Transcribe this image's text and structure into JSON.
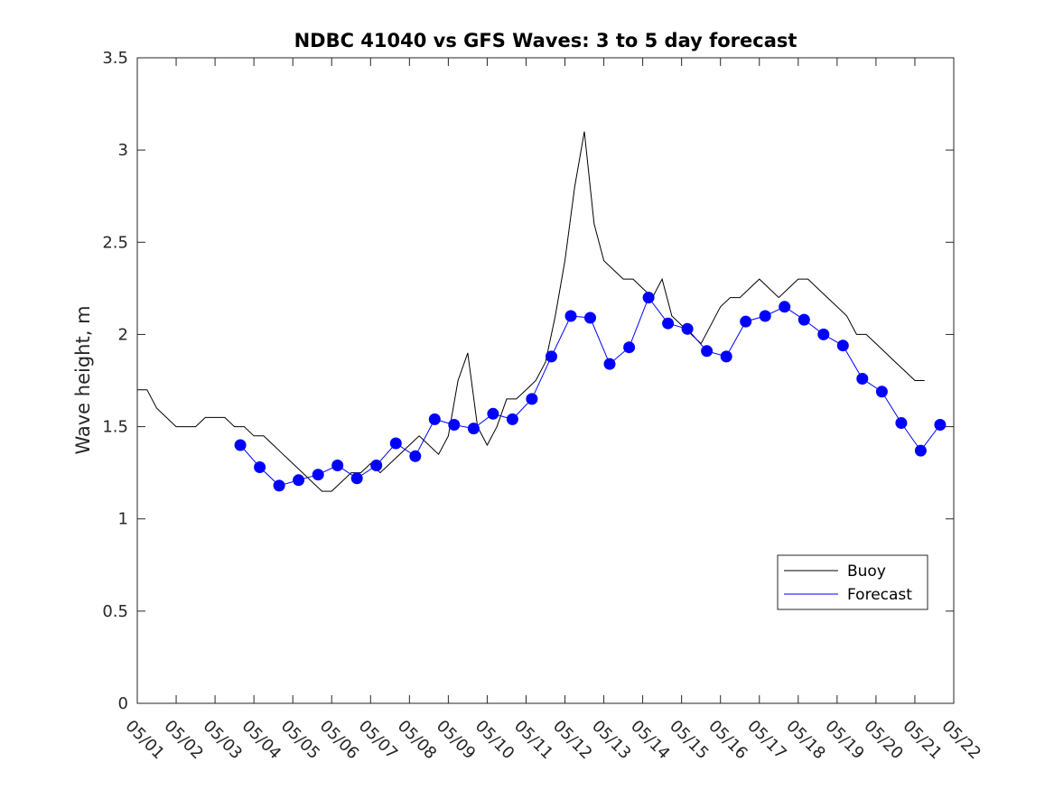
{
  "chart_data": {
    "type": "line",
    "title": "NDBC 41040 vs GFS Waves: 3 to 5 day forecast",
    "xlabel": "",
    "ylabel": "Wave height, m",
    "xlim": [
      0,
      21
    ],
    "ylim": [
      0,
      3.5
    ],
    "x_units": "days since 05/01",
    "y_ticks": [
      "0",
      "0.5",
      "1",
      "1.5",
      "2",
      "2.5",
      "3",
      "3.5"
    ],
    "y_tick_values": [
      0,
      0.5,
      1,
      1.5,
      2,
      2.5,
      3,
      3.5
    ],
    "x_tick_labels": [
      "05/01",
      "05/02",
      "05/03",
      "05/04",
      "05/05",
      "05/06",
      "05/07",
      "05/08",
      "05/09",
      "05/10",
      "05/11",
      "05/12",
      "05/13",
      "05/14",
      "05/15",
      "05/16",
      "05/17",
      "05/18",
      "05/19",
      "05/20",
      "05/21",
      "05/22"
    ],
    "grid": false,
    "legend": {
      "position": "lower-right",
      "entries": [
        "Buoy",
        "Forecast"
      ]
    },
    "colors": {
      "buoy": "#000000",
      "forecast": "#0000ff",
      "axis": "#262626"
    },
    "series": [
      {
        "name": "Buoy",
        "style": "line",
        "x": [
          0,
          0.25,
          0.5,
          0.75,
          1,
          1.25,
          1.5,
          1.75,
          2,
          2.25,
          2.5,
          2.75,
          3,
          3.25,
          3.5,
          3.75,
          4,
          4.25,
          4.5,
          4.75,
          5,
          5.25,
          5.5,
          5.75,
          6,
          6.25,
          6.5,
          6.75,
          7,
          7.25,
          7.5,
          7.75,
          8,
          8.25,
          8.5,
          8.75,
          9,
          9.25,
          9.5,
          9.75,
          10,
          10.25,
          10.5,
          10.75,
          11,
          11.25,
          11.5,
          11.75,
          12,
          12.25,
          12.5,
          12.75,
          13,
          13.25,
          13.5,
          13.75,
          14,
          14.25,
          14.5,
          14.75,
          15,
          15.25,
          15.5,
          15.75,
          16,
          16.25,
          16.5,
          16.75,
          17,
          17.25,
          17.5,
          17.75,
          18,
          18.25,
          18.5,
          18.75,
          19,
          19.25,
          19.5,
          19.75,
          20,
          20.25
        ],
        "y": [
          1.7,
          1.7,
          1.6,
          1.55,
          1.5,
          1.5,
          1.5,
          1.55,
          1.55,
          1.55,
          1.5,
          1.5,
          1.45,
          1.45,
          1.4,
          1.35,
          1.3,
          1.25,
          1.2,
          1.15,
          1.15,
          1.2,
          1.25,
          1.25,
          1.3,
          1.25,
          1.3,
          1.35,
          1.4,
          1.45,
          1.4,
          1.35,
          1.45,
          1.75,
          1.9,
          1.5,
          1.4,
          1.5,
          1.65,
          1.65,
          1.7,
          1.75,
          1.85,
          2.1,
          2.4,
          2.8,
          3.1,
          2.6,
          2.4,
          2.35,
          2.3,
          2.3,
          2.25,
          2.2,
          2.3,
          2.1,
          2.05,
          2.0,
          1.95,
          2.05,
          2.15,
          2.2,
          2.2,
          2.25,
          2.3,
          2.25,
          2.2,
          2.25,
          2.3,
          2.3,
          2.25,
          2.2,
          2.15,
          2.1,
          2.0,
          2.0,
          1.95,
          1.9,
          1.85,
          1.8,
          1.75,
          1.75
        ]
      },
      {
        "name": "Forecast",
        "style": "line+markers",
        "x": [
          2.65,
          3.15,
          3.65,
          4.15,
          4.65,
          5.15,
          5.65,
          6.15,
          6.65,
          7.15,
          7.65,
          8.15,
          8.65,
          9.15,
          9.65,
          10.15,
          10.65,
          11.15,
          11.65,
          12.15,
          12.65,
          13.15,
          13.65,
          14.15,
          14.65,
          15.15,
          15.65,
          16.15,
          16.65,
          17.15,
          17.65,
          18.15,
          18.65,
          19.15,
          19.65,
          20.15,
          20.65
        ],
        "y": [
          1.4,
          1.28,
          1.18,
          1.21,
          1.24,
          1.29,
          1.22,
          1.29,
          1.41,
          1.34,
          1.54,
          1.51,
          1.49,
          1.57,
          1.54,
          1.65,
          1.88,
          2.1,
          2.09,
          1.84,
          1.93,
          2.2,
          2.06,
          2.03,
          1.91,
          1.88,
          2.07,
          2.1,
          2.15,
          2.08,
          2.0,
          1.94,
          1.76,
          1.69,
          1.52,
          1.37,
          1.51
        ]
      }
    ]
  }
}
